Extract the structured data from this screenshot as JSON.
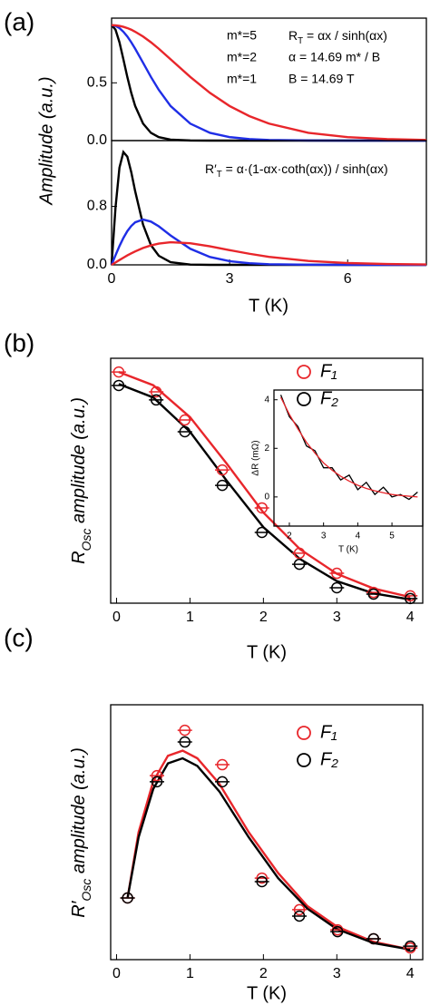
{
  "chart_data": [
    {
      "type": "line",
      "panel_label": "(a)",
      "y_label": "Amplitude (a.u.)",
      "x": [
        0,
        0.1,
        0.2,
        0.3,
        0.4,
        0.5,
        0.6,
        0.8,
        1,
        1.2,
        1.5,
        2,
        2.5,
        3,
        3.5,
        4,
        5,
        6,
        7,
        8
      ],
      "xlim": [
        0,
        8
      ],
      "ylim": [
        0,
        1.06
      ],
      "yticks": [
        {
          "value": 0,
          "label": "0.0"
        },
        {
          "value": 0.5,
          "label": "0.5"
        }
      ],
      "series": [
        {
          "name": "m*=5",
          "color": "#000000",
          "values": [
            1,
            0.96,
            0.851,
            0.704,
            0.551,
            0.413,
            0.299,
            0.147,
            0.067,
            0.03,
            0.008,
            0.001,
            0,
            0,
            0,
            0,
            0,
            0,
            0,
            0
          ]
        },
        {
          "name": "m*=2",
          "color": "#1f2ee6",
          "values": [
            1,
            0.993,
            0.974,
            0.942,
            0.901,
            0.851,
            0.795,
            0.674,
            0.551,
            0.439,
            0.299,
            0.147,
            0.067,
            0.03,
            0.013,
            0.005,
            0.001,
            0,
            0,
            0
          ]
        },
        {
          "name": "m*=1",
          "color": "#e8262b",
          "values": [
            1,
            0.998,
            0.993,
            0.985,
            0.974,
            0.96,
            0.942,
            0.901,
            0.851,
            0.795,
            0.704,
            0.551,
            0.413,
            0.299,
            0.212,
            0.147,
            0.067,
            0.03,
            0.013,
            0.005
          ]
        }
      ],
      "annotations": [
        [
          "R",
          "T",
          " = αx / sinh(αx)"
        ],
        "α = 14.69 m* / B",
        "B = 14.69 T"
      ]
    },
    {
      "type": "line",
      "x_label": "T (K)",
      "x": [
        0,
        0.1,
        0.2,
        0.3,
        0.4,
        0.5,
        0.6,
        0.8,
        1,
        1.2,
        1.5,
        2,
        2.5,
        3,
        3.5,
        4,
        5,
        6,
        7,
        8
      ],
      "xlim": [
        0,
        8
      ],
      "xticks": [
        0,
        3,
        6
      ],
      "ylim": [
        0,
        1.7
      ],
      "yticks": [
        {
          "value": 0,
          "label": "0.0"
        },
        {
          "value": 0.8,
          "label": "0.8"
        }
      ],
      "series": [
        {
          "color": "#000000",
          "values": [
            0,
            0.785,
            1.33,
            1.543,
            1.48,
            1.268,
            1.006,
            0.55,
            0.27,
            0.124,
            0.036,
            0.004,
            0,
            0,
            0,
            0,
            0,
            0,
            0,
            0
          ]
        },
        {
          "color": "#1f2ee6",
          "values": [
            0,
            0.132,
            0.257,
            0.368,
            0.461,
            0.532,
            0.582,
            0.62,
            0.592,
            0.527,
            0.402,
            0.22,
            0.108,
            0.05,
            0.022,
            0.009,
            0.002,
            0,
            0,
            0
          ]
        },
        {
          "color": "#e8262b",
          "values": [
            0,
            0.033,
            0.066,
            0.098,
            0.129,
            0.157,
            0.184,
            0.231,
            0.266,
            0.291,
            0.309,
            0.296,
            0.254,
            0.201,
            0.152,
            0.11,
            0.054,
            0.025,
            0.011,
            0.005
          ]
        }
      ],
      "annotations": [
        [
          "R′",
          "T",
          " = α·(1-αx·coth(αx)) / sinh(αx)"
        ]
      ]
    },
    {
      "type": "scatter",
      "panel_label": "(b)",
      "x_label": "T (K)",
      "y_label": [
        "R",
        "Osc",
        " amplitude (a.u.)"
      ],
      "x": [
        0.03,
        0.54,
        0.93,
        1.44,
        1.98,
        2.49,
        3.0,
        3.5,
        4.0
      ],
      "xlim": [
        -0.08,
        4.17
      ],
      "xticks": [
        0,
        1,
        2,
        3,
        4
      ],
      "ylim": [
        0,
        1
      ],
      "series": [
        {
          "name": "F₁",
          "color": "#e8262b",
          "values": [
            0.944,
            0.863,
            0.748,
            0.544,
            0.389,
            0.204,
            0.122,
            0.044,
            0.03
          ],
          "fit": {
            "x": [
              0.03,
              0.5,
              1,
              1.5,
              2,
              2.5,
              3,
              3.5,
              4
            ],
            "values": [
              0.944,
              0.89,
              0.76,
              0.57,
              0.37,
              0.22,
              0.12,
              0.06,
              0.025
            ]
          }
        },
        {
          "name": "F₂",
          "color": "#000000",
          "values": [
            0.889,
            0.83,
            0.7,
            0.481,
            0.289,
            0.159,
            0.063,
            0.037,
            0.019
          ],
          "fit": {
            "x": [
              0.03,
              0.5,
              1,
              1.5,
              2,
              2.5,
              3,
              3.5,
              4
            ],
            "values": [
              0.895,
              0.84,
              0.7,
              0.5,
              0.31,
              0.18,
              0.09,
              0.04,
              0.015
            ]
          }
        }
      ]
    },
    {
      "type": "line",
      "x_label": "T (K)",
      "y_label": "ΔR (mΩ)",
      "x": [
        1.75,
        2,
        2.25,
        2.5,
        2.75,
        3,
        3.25,
        3.5,
        3.75,
        4,
        4.25,
        4.5,
        4.75,
        5,
        5.25,
        5.5,
        5.75
      ],
      "xlim": [
        1.55,
        5.9
      ],
      "xticks": [
        2,
        3,
        4,
        5
      ],
      "ylim": [
        -1.2,
        4.4
      ],
      "yticks": [
        0,
        2,
        4
      ],
      "series": [
        {
          "color": "#000000",
          "values": [
            4.2,
            3.3,
            2.9,
            2.1,
            1.9,
            1.2,
            1.2,
            0.7,
            0.9,
            0.3,
            0.6,
            0.1,
            0.4,
            0.0,
            0.1,
            -0.1,
            0.2
          ]
        },
        {
          "color": "#e8262b",
          "values": [
            4.1,
            3.4,
            2.8,
            2.25,
            1.8,
            1.4,
            1.1,
            0.85,
            0.65,
            0.48,
            0.35,
            0.25,
            0.17,
            0.1,
            0.06,
            0.03,
            0.0
          ]
        }
      ]
    },
    {
      "type": "scatter",
      "panel_label": "(c)",
      "x_label": "T (K)",
      "y_label": [
        "R′",
        "Osc",
        " amplitude (a.u.)"
      ],
      "x": [
        0.15,
        0.55,
        0.93,
        1.44,
        1.98,
        2.49,
        3.01,
        3.5,
        4.0
      ],
      "xlim": [
        -0.08,
        4.17
      ],
      "xticks": [
        0,
        1,
        2,
        3,
        4
      ],
      "ylim": [
        0,
        1
      ],
      "series": [
        {
          "name": "F₁",
          "color": "#e8262b",
          "values": [
            0.242,
            0.722,
            0.9,
            0.765,
            0.32,
            0.196,
            0.117,
            0.082,
            0.046
          ],
          "fit": {
            "x": [
              0.15,
              0.3,
              0.5,
              0.7,
              0.9,
              1.1,
              1.4,
              1.8,
              2.2,
              2.6,
              3.0,
              3.5,
              4.0
            ],
            "values": [
              0.242,
              0.5,
              0.7,
              0.8,
              0.82,
              0.79,
              0.69,
              0.5,
              0.34,
              0.21,
              0.13,
              0.07,
              0.04
            ]
          }
        },
        {
          "name": "F₂",
          "color": "#000000",
          "values": [
            0.242,
            0.698,
            0.854,
            0.698,
            0.306,
            0.171,
            0.11,
            0.082,
            0.053
          ],
          "fit": {
            "x": [
              0.15,
              0.3,
              0.5,
              0.7,
              0.9,
              1.1,
              1.4,
              1.8,
              2.2,
              2.6,
              3.0,
              3.5,
              4.0
            ],
            "values": [
              0.242,
              0.48,
              0.67,
              0.77,
              0.79,
              0.76,
              0.66,
              0.48,
              0.32,
              0.2,
              0.12,
              0.065,
              0.04
            ]
          }
        }
      ]
    }
  ]
}
